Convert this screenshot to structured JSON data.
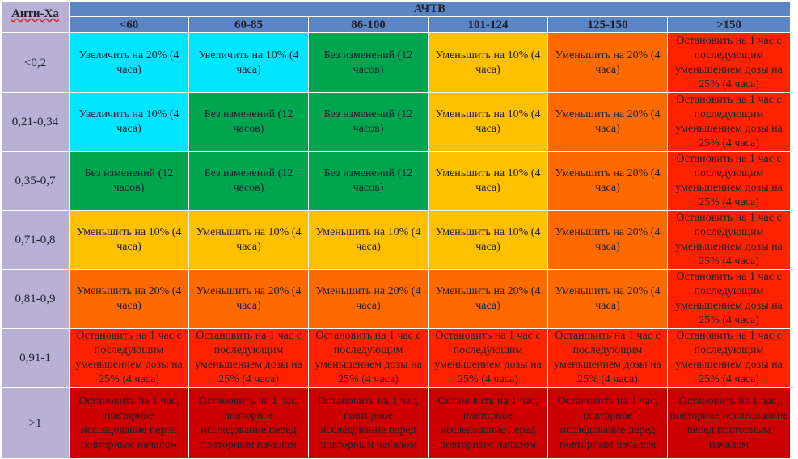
{
  "table": {
    "corner_label": "Анти-Xa",
    "group_header": "АЧТВ",
    "columns": [
      "<60",
      "60-85",
      "86-100",
      "101-124",
      "125-150",
      ">150"
    ],
    "rows": [
      {
        "label": "<0,2",
        "cells": [
          {
            "text": "Увеличить на 20% (4 часа)",
            "color": "cyan"
          },
          {
            "text": "Увеличить на 10% (4 часа)",
            "color": "cyan"
          },
          {
            "text": "Без изменений (12 часов)",
            "color": "green"
          },
          {
            "text": "Уменьшить на 10% (4 часа)",
            "color": "yellow"
          },
          {
            "text": "Уменьшить на 20% (4 часа)",
            "color": "orange"
          },
          {
            "text": "Остановить на 1 час с последующим уменьшением дозы на 25% (4 часа)",
            "color": "red"
          }
        ]
      },
      {
        "label": "0,21-0,34",
        "cells": [
          {
            "text": "Увеличить на 10% (4 часа)",
            "color": "cyan"
          },
          {
            "text": "Без изменений (12 часов)",
            "color": "green"
          },
          {
            "text": "Без изменений (12 часов)",
            "color": "green"
          },
          {
            "text": "Уменьшить на 10% (4 часа)",
            "color": "yellow"
          },
          {
            "text": "Уменьшить на 20% (4 часа)",
            "color": "orange"
          },
          {
            "text": "Остановить на 1 час с последующим уменьшением дозы на 25% (4 часа)",
            "color": "red"
          }
        ]
      },
      {
        "label": "0,35-0,7",
        "cells": [
          {
            "text": "Без изменений (12 часов)",
            "color": "green"
          },
          {
            "text": "Без изменений (12 часов)",
            "color": "green"
          },
          {
            "text": "Без изменений (12 часов)",
            "color": "green"
          },
          {
            "text": "Уменьшить на 10% (4 часа)",
            "color": "yellow"
          },
          {
            "text": "Уменьшить на 20% (4 часа)",
            "color": "orange"
          },
          {
            "text": "Остановить на 1 час с последующим уменьшением дозы на 25% (4 часа)",
            "color": "red"
          }
        ]
      },
      {
        "label": "0,71-0,8",
        "cells": [
          {
            "text": "Уменьшить на 10% (4 часа)",
            "color": "yellow"
          },
          {
            "text": "Уменьшить на 10% (4 часа)",
            "color": "yellow"
          },
          {
            "text": "Уменьшить на 10% (4 часа)",
            "color": "yellow"
          },
          {
            "text": "Уменьшить на 10% (4 часа)",
            "color": "yellow"
          },
          {
            "text": "Уменьшить на 20% (4 часа)",
            "color": "orange"
          },
          {
            "text": "Остановить на 1 час с последующим уменьшением дозы на 25% (4 часа)",
            "color": "red"
          }
        ]
      },
      {
        "label": "0,81-0,9",
        "cells": [
          {
            "text": "Уменьшить на 20% (4 часа)",
            "color": "orange"
          },
          {
            "text": "Уменьшить на 20% (4 часа)",
            "color": "orange"
          },
          {
            "text": "Уменьшить на 20% (4 часа)",
            "color": "orange"
          },
          {
            "text": "Уменьшить на 20% (4 часа)",
            "color": "orange"
          },
          {
            "text": "Уменьшить на 20% (4 часа)",
            "color": "orange"
          },
          {
            "text": "Остановить на 1 час с последующим уменьшением дозы на 25% (4 часа)",
            "color": "red"
          }
        ]
      },
      {
        "label": "0,91-1",
        "cells": [
          {
            "text": "Остановить на 1 час с последующим уменьшением дозы на 25% (4 часа)",
            "color": "red"
          },
          {
            "text": "Остановить на 1 час с последующим уменьшением дозы на 25% (4 часа)",
            "color": "red"
          },
          {
            "text": "Остановить на 1 час с последующим уменьшением дозы на 25% (4 часа)",
            "color": "red"
          },
          {
            "text": "Остановить на 1 час с последующим уменьшением дозы на 25% (4 часа)",
            "color": "red"
          },
          {
            "text": "Остановить на 1 час с последующим уменьшением дозы на 25% (4 часа)",
            "color": "red"
          },
          {
            "text": "Остановить на 1 час с последующим уменьшением дозы на 25% (4 часа)",
            "color": "red"
          }
        ]
      },
      {
        "label": ">1",
        "cells": [
          {
            "text": "Остановить на 1 час, повторное исследование перед повторным началом",
            "color": "dark-red"
          },
          {
            "text": "Остановить на 1 час, повторное исследование перед повторным началом",
            "color": "dark-red"
          },
          {
            "text": "Остановить на 1 час, повторное исследование перед повторным началом",
            "color": "dark-red"
          },
          {
            "text": "Остановить на 1 час, повторное исследование перед повторным началом",
            "color": "dark-red"
          },
          {
            "text": "Остановить на 1 час, повторное исследование перед повторным началом",
            "color": "dark-red"
          },
          {
            "text": "Остановить на 1 час, повторное исследование перед повторным началом",
            "color": "dark-red"
          }
        ]
      }
    ]
  },
  "colors": {
    "cyan": "#00e5ff",
    "green": "#00a550",
    "yellow": "#ffc000",
    "orange": "#ff6a00",
    "red": "#ff2200",
    "dark-red": "#cc0000",
    "header": "#5b86c6",
    "row-label": "#b9b1d4"
  }
}
